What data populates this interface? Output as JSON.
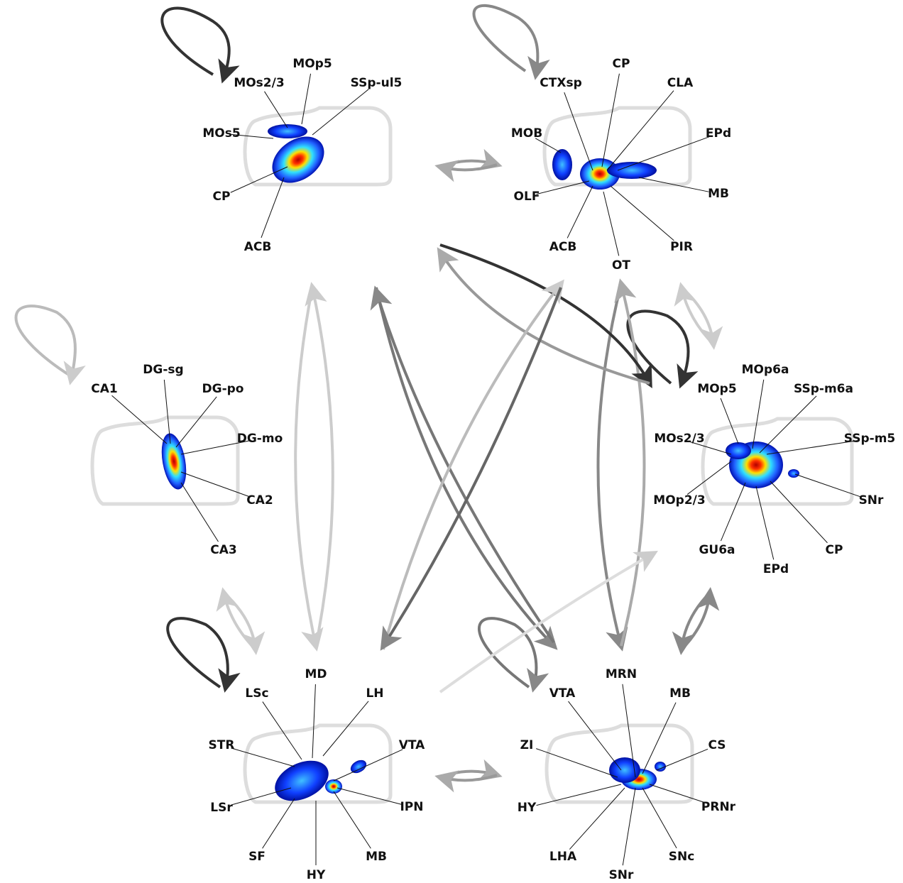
{
  "nodes": [
    {
      "labels": [
        "MOs2/3",
        "MOp5",
        "SSp-ul5",
        "MOs5",
        "CP",
        "ACB"
      ]
    },
    {
      "labels": [
        "CTXsp",
        "CP",
        "CLA",
        "MOB",
        "EPd",
        "OLF",
        "MB",
        "ACB",
        "PIR",
        "OT"
      ]
    },
    {
      "labels": [
        "CA1",
        "DG-sg",
        "DG-po",
        "DG-mo",
        "CA2",
        "CA3"
      ]
    },
    {
      "labels": [
        "MOp5",
        "MOp6a",
        "SSp-m6a",
        "MOs2/3",
        "SSp-m5",
        "MOp2/3",
        "SNr",
        "GU6a",
        "EPd",
        "CP"
      ]
    },
    {
      "labels": [
        "MD",
        "LSc",
        "LH",
        "STR",
        "VTA",
        "LSr",
        "IPN",
        "SF",
        "HY",
        "MB"
      ]
    },
    {
      "labels": [
        "MRN",
        "VTA",
        "MB",
        "ZI",
        "CS",
        "HY",
        "PRNr",
        "LHA",
        "SNr",
        "SNc"
      ]
    }
  ]
}
